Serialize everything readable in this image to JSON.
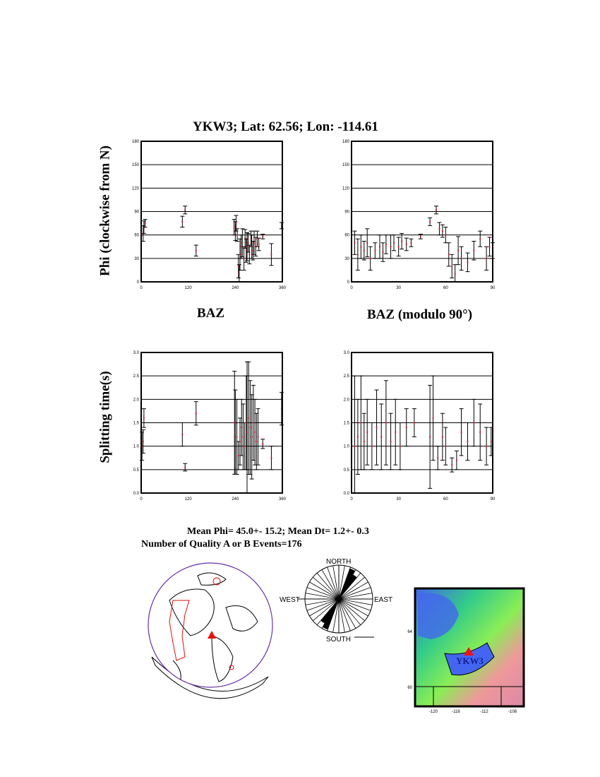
{
  "title": "YKW3; Lat:  62.56;  Lon: -114.61",
  "summary": {
    "mean_line": "Mean Phi= 45.0+- 15.2; Mean Dt=  1.2+-  0.3",
    "events_line": "Number of Quality A or B Events=176"
  },
  "colors": {
    "point": "#cc2233",
    "errorbar": "#000000",
    "globe_outline": "#6633aa",
    "station": "#ee1111"
  },
  "chart_data": [
    {
      "type": "scatter",
      "ylabel": "Phi (clockwise from N)",
      "xlabel": "BAZ",
      "xlim": [
        0,
        360
      ],
      "ylim": [
        0,
        180
      ],
      "xticks": [
        "0",
        "120",
        "240",
        "360"
      ],
      "yticks": [
        "0",
        "30",
        "60",
        "90",
        "120",
        "150",
        "180"
      ],
      "grid": "horizontal",
      "error_bars": true,
      "points": [
        [
          5,
          62,
          10
        ],
        [
          7,
          70,
          8
        ],
        [
          10,
          75,
          5
        ],
        [
          105,
          77,
          7
        ],
        [
          112,
          92,
          5
        ],
        [
          140,
          40,
          7
        ],
        [
          237,
          70,
          10
        ],
        [
          240,
          65,
          12
        ],
        [
          242,
          75,
          10
        ],
        [
          245,
          60,
          8
        ],
        [
          248,
          20,
          15
        ],
        [
          250,
          10,
          12
        ],
        [
          252,
          35,
          20
        ],
        [
          255,
          45,
          15
        ],
        [
          258,
          50,
          18
        ],
        [
          262,
          30,
          15
        ],
        [
          265,
          55,
          12
        ],
        [
          268,
          40,
          15
        ],
        [
          270,
          45,
          18
        ],
        [
          273,
          50,
          12
        ],
        [
          276,
          35,
          12
        ],
        [
          280,
          55,
          10
        ],
        [
          282,
          45,
          15
        ],
        [
          285,
          40,
          12
        ],
        [
          288,
          50,
          15
        ],
        [
          292,
          45,
          12
        ],
        [
          296,
          55,
          10
        ],
        [
          300,
          48,
          8
        ],
        [
          310,
          58,
          3
        ],
        [
          332,
          35,
          14
        ],
        [
          358,
          72,
          4
        ]
      ]
    },
    {
      "type": "scatter",
      "ylabel": "",
      "xlabel": "BAZ (modulo 90°)",
      "xlim": [
        0,
        90
      ],
      "ylim": [
        0,
        180
      ],
      "xticks": [
        "0",
        "30",
        "60",
        "90"
      ],
      "yticks": [
        "0",
        "30",
        "60",
        "90",
        "120",
        "150",
        "180"
      ],
      "grid": "horizontal",
      "error_bars": true,
      "points": [
        [
          2,
          50,
          15
        ],
        [
          4,
          35,
          20
        ],
        [
          6,
          45,
          15
        ],
        [
          8,
          40,
          12
        ],
        [
          10,
          50,
          18
        ],
        [
          12,
          30,
          15
        ],
        [
          15,
          40,
          10
        ],
        [
          18,
          45,
          15
        ],
        [
          20,
          38,
          12
        ],
        [
          22,
          48,
          12
        ],
        [
          25,
          45,
          15
        ],
        [
          27,
          50,
          10
        ],
        [
          30,
          45,
          12
        ],
        [
          32,
          52,
          10
        ],
        [
          35,
          48,
          8
        ],
        [
          38,
          50,
          5
        ],
        [
          44,
          58,
          3
        ],
        [
          50,
          77,
          5
        ],
        [
          54,
          92,
          5
        ],
        [
          56,
          68,
          8
        ],
        [
          58,
          65,
          8
        ],
        [
          60,
          60,
          10
        ],
        [
          62,
          35,
          15
        ],
        [
          64,
          20,
          15
        ],
        [
          66,
          10,
          12
        ],
        [
          68,
          40,
          18
        ],
        [
          70,
          30,
          15
        ],
        [
          74,
          25,
          12
        ],
        [
          78,
          40,
          12
        ],
        [
          82,
          55,
          10
        ],
        [
          86,
          30,
          15
        ],
        [
          88,
          45,
          12
        ],
        [
          90,
          40,
          10
        ]
      ]
    },
    {
      "type": "scatter",
      "ylabel": "Splitting time(s)",
      "xlabel": "",
      "xlim": [
        0,
        360
      ],
      "ylim": [
        0,
        3
      ],
      "xticks": [
        "0",
        "120",
        "240",
        "360"
      ],
      "yticks": [
        "0.0",
        "0.5",
        "1.0",
        "1.5",
        "2.0",
        "2.5",
        "3.0"
      ],
      "grid": "horizontal",
      "error_bars": true,
      "points": [
        [
          2,
          1.0,
          0.3
        ],
        [
          5,
          1.1,
          0.25
        ],
        [
          7,
          1.6,
          0.2
        ],
        [
          105,
          1.25,
          0.25
        ],
        [
          112,
          0.55,
          0.08
        ],
        [
          140,
          1.7,
          0.25
        ],
        [
          238,
          1.5,
          1.1
        ],
        [
          240,
          1.3,
          0.9
        ],
        [
          244,
          1.2,
          0.8
        ],
        [
          248,
          0.8,
          0.3
        ],
        [
          252,
          1.1,
          0.5
        ],
        [
          256,
          1.4,
          0.6
        ],
        [
          260,
          1.2,
          0.7
        ],
        [
          264,
          1.0,
          0.5
        ],
        [
          268,
          1.5,
          1.0
        ],
        [
          270,
          1.3,
          1.5
        ],
        [
          274,
          1.6,
          1.2
        ],
        [
          278,
          1.4,
          1.0
        ],
        [
          282,
          1.2,
          0.9
        ],
        [
          286,
          1.5,
          0.8
        ],
        [
          290,
          1.3,
          0.7
        ],
        [
          294,
          1.1,
          0.6
        ],
        [
          298,
          1.2,
          0.6
        ],
        [
          310,
          1.05,
          0.1
        ],
        [
          332,
          0.75,
          0.25
        ],
        [
          358,
          1.8,
          0.35
        ]
      ]
    },
    {
      "type": "scatter",
      "ylabel": "",
      "xlabel": "",
      "xlim": [
        0,
        90
      ],
      "ylim": [
        0,
        3
      ],
      "xticks": [
        "0",
        "30",
        "60",
        "90"
      ],
      "yticks": [
        "0.0",
        "0.5",
        "1.0",
        "1.5",
        "2.0",
        "2.5",
        "3.0"
      ],
      "grid": "horizontal",
      "error_bars": true,
      "points": [
        [
          2,
          1.0,
          1.5
        ],
        [
          4,
          1.2,
          0.8
        ],
        [
          6,
          1.5,
          1.0
        ],
        [
          8,
          1.1,
          0.6
        ],
        [
          10,
          1.3,
          0.7
        ],
        [
          13,
          1.0,
          0.5
        ],
        [
          16,
          1.4,
          0.8
        ],
        [
          19,
          1.2,
          0.7
        ],
        [
          22,
          1.5,
          0.9
        ],
        [
          25,
          1.1,
          0.6
        ],
        [
          28,
          1.3,
          0.7
        ],
        [
          31,
          1.0,
          0.5
        ],
        [
          35,
          1.4,
          0.4
        ],
        [
          40,
          1.5,
          0.3
        ],
        [
          50,
          1.2,
          1.1
        ],
        [
          52,
          1.6,
          0.9
        ],
        [
          55,
          0.75,
          0.25
        ],
        [
          58,
          1.2,
          0.5
        ],
        [
          60,
          1.0,
          0.4
        ],
        [
          64,
          0.6,
          0.15
        ],
        [
          67,
          0.7,
          0.2
        ],
        [
          70,
          1.3,
          0.5
        ],
        [
          74,
          1.1,
          0.4
        ],
        [
          78,
          1.5,
          0.5
        ],
        [
          82,
          1.3,
          0.6
        ],
        [
          86,
          1.0,
          0.4
        ],
        [
          89,
          1.1,
          0.3
        ]
      ]
    }
  ],
  "rose": {
    "labels": {
      "north": "NORTH",
      "south": "SOUTH",
      "east": "EAST",
      "west": "WEST"
    },
    "dominant_direction_deg": 45
  },
  "map": {
    "station_label": "YKW3",
    "yticks": [
      "64",
      "60"
    ],
    "xticks": [
      "-120",
      "-116",
      "-112",
      "-108"
    ]
  }
}
